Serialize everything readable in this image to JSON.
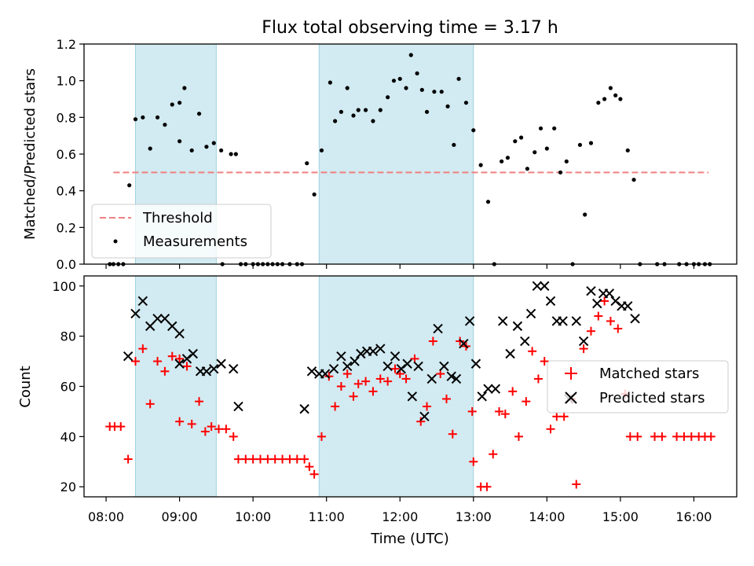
{
  "chart_data": [
    {
      "type": "scatter",
      "title": "Flux total observing time = 3.17 h",
      "xlabel": "",
      "ylabel": "Matched/Predicted stars",
      "xlim": [
        "07:42",
        "16:35"
      ],
      "ylim": [
        0,
        1.2
      ],
      "yticks": [
        "0.0",
        "0.2",
        "0.4",
        "0.6",
        "0.8",
        "1.0",
        "1.2"
      ],
      "legend_position": "lower-left",
      "shaded_intervals": [
        [
          "08:24",
          "09:30"
        ],
        [
          "10:54",
          "13:00"
        ]
      ],
      "shade_color": "#add8e6",
      "threshold": {
        "name": "Threshold",
        "value": 0.5,
        "x_range": [
          "08:06",
          "16:12"
        ],
        "color": "#f08080",
        "style": "dashed"
      },
      "series": [
        {
          "name": "Measurements",
          "color": "#000000",
          "marker": "dot",
          "points": [
            [
              "08:03",
              0
            ],
            [
              "08:06",
              0
            ],
            [
              "08:10",
              0
            ],
            [
              "08:14",
              0
            ],
            [
              "08:19",
              0.43
            ],
            [
              "08:24",
              0.79
            ],
            [
              "08:30",
              0.8
            ],
            [
              "08:36",
              0.63
            ],
            [
              "08:42",
              0.8
            ],
            [
              "08:48",
              0.76
            ],
            [
              "08:54",
              0.87
            ],
            [
              "09:00",
              0.88
            ],
            [
              "09:00",
              0.67
            ],
            [
              "09:04",
              0.96
            ],
            [
              "09:10",
              0.62
            ],
            [
              "09:16",
              0.82
            ],
            [
              "09:22",
              0.64
            ],
            [
              "09:28",
              0.66
            ],
            [
              "09:34",
              0.62
            ],
            [
              "09:35",
              0
            ],
            [
              "09:42",
              0.6
            ],
            [
              "09:46",
              0.6
            ],
            [
              "09:50",
              0
            ],
            [
              "09:54",
              0
            ],
            [
              "10:00",
              0
            ],
            [
              "10:04",
              0
            ],
            [
              "10:08",
              0
            ],
            [
              "10:12",
              0
            ],
            [
              "10:16",
              0
            ],
            [
              "10:20",
              0
            ],
            [
              "10:24",
              0
            ],
            [
              "10:30",
              0
            ],
            [
              "10:36",
              0
            ],
            [
              "10:40",
              0
            ],
            [
              "10:44",
              0.55
            ],
            [
              "10:50",
              0.38
            ],
            [
              "10:56",
              0.62
            ],
            [
              "11:03",
              0.99
            ],
            [
              "11:07",
              0.78
            ],
            [
              "11:12",
              0.83
            ],
            [
              "11:17",
              0.96
            ],
            [
              "11:22",
              0.81
            ],
            [
              "11:26",
              0.84
            ],
            [
              "11:32",
              0.84
            ],
            [
              "11:38",
              0.78
            ],
            [
              "11:44",
              0.84
            ],
            [
              "11:50",
              0.91
            ],
            [
              "11:55",
              1.0
            ],
            [
              "12:00",
              1.01
            ],
            [
              "12:05",
              0.96
            ],
            [
              "12:09",
              1.14
            ],
            [
              "12:14",
              1.04
            ],
            [
              "12:18",
              0.95
            ],
            [
              "12:22",
              0.83
            ],
            [
              "12:28",
              0.94
            ],
            [
              "12:34",
              0.94
            ],
            [
              "12:39",
              0.86
            ],
            [
              "12:44",
              0.65
            ],
            [
              "12:48",
              1.01
            ],
            [
              "12:54",
              0.88
            ],
            [
              "13:00",
              0.73
            ],
            [
              "13:06",
              0.54
            ],
            [
              "13:12",
              0.34
            ],
            [
              "13:17",
              0
            ],
            [
              "13:23",
              0.56
            ],
            [
              "13:28",
              0.58
            ],
            [
              "13:34",
              0.67
            ],
            [
              "13:39",
              0.69
            ],
            [
              "13:44",
              0.52
            ],
            [
              "13:50",
              0.61
            ],
            [
              "13:55",
              0.74
            ],
            [
              "14:00",
              0.63
            ],
            [
              "14:06",
              0.74
            ],
            [
              "14:11",
              0.5
            ],
            [
              "14:16",
              0.56
            ],
            [
              "14:21",
              0
            ],
            [
              "14:27",
              0.65
            ],
            [
              "14:31",
              0.27
            ],
            [
              "14:36",
              0.66
            ],
            [
              "14:42",
              0.88
            ],
            [
              "14:47",
              0.9
            ],
            [
              "14:52",
              0.96
            ],
            [
              "14:56",
              0.92
            ],
            [
              "15:00",
              0.9
            ],
            [
              "15:06",
              0.62
            ],
            [
              "15:11",
              0.46
            ],
            [
              "15:16",
              0
            ],
            [
              "15:30",
              0
            ],
            [
              "15:36",
              0
            ],
            [
              "15:48",
              0
            ],
            [
              "15:54",
              0
            ],
            [
              "16:00",
              0
            ],
            [
              "16:04",
              0
            ],
            [
              "16:09",
              0
            ],
            [
              "16:13",
              0
            ]
          ]
        }
      ]
    },
    {
      "type": "scatter",
      "title": "",
      "xlabel": "Time (UTC)",
      "ylabel": "Count",
      "xlim": [
        "07:42",
        "16:35"
      ],
      "ylim": [
        16,
        104
      ],
      "yticks": [
        "20",
        "40",
        "60",
        "80",
        "100"
      ],
      "xticks": [
        "08:00",
        "09:00",
        "10:00",
        "11:00",
        "12:00",
        "13:00",
        "14:00",
        "15:00",
        "16:00"
      ],
      "legend_position": "center-right",
      "shaded_intervals": [
        [
          "08:24",
          "09:30"
        ],
        [
          "10:54",
          "13:00"
        ]
      ],
      "shade_color": "#add8e6",
      "series": [
        {
          "name": "Matched stars",
          "color": "#ff0000",
          "marker": "plus",
          "points": [
            [
              "08:03",
              44
            ],
            [
              "08:07",
              44
            ],
            [
              "08:12",
              44
            ],
            [
              "08:18",
              31
            ],
            [
              "08:24",
              70
            ],
            [
              "08:30",
              75
            ],
            [
              "08:36",
              53
            ],
            [
              "08:42",
              70
            ],
            [
              "08:48",
              66
            ],
            [
              "08:54",
              72
            ],
            [
              "09:00",
              71
            ],
            [
              "09:00",
              46
            ],
            [
              "09:06",
              68
            ],
            [
              "09:10",
              45
            ],
            [
              "09:16",
              54
            ],
            [
              "09:21",
              42
            ],
            [
              "09:26",
              44
            ],
            [
              "09:32",
              43
            ],
            [
              "09:38",
              43
            ],
            [
              "09:44",
              40
            ],
            [
              "09:48",
              31
            ],
            [
              "09:54",
              31
            ],
            [
              "10:00",
              31
            ],
            [
              "10:06",
              31
            ],
            [
              "10:12",
              31
            ],
            [
              "10:18",
              31
            ],
            [
              "10:24",
              31
            ],
            [
              "10:30",
              31
            ],
            [
              "10:36",
              31
            ],
            [
              "10:42",
              31
            ],
            [
              "10:46",
              28
            ],
            [
              "10:50",
              25
            ],
            [
              "10:56",
              40
            ],
            [
              "11:02",
              64
            ],
            [
              "11:07",
              52
            ],
            [
              "11:12",
              60
            ],
            [
              "11:17",
              65
            ],
            [
              "11:22",
              56
            ],
            [
              "11:26",
              61
            ],
            [
              "11:32",
              62
            ],
            [
              "11:38",
              58
            ],
            [
              "11:44",
              63
            ],
            [
              "11:50",
              62
            ],
            [
              "11:56",
              67
            ],
            [
              "12:00",
              65
            ],
            [
              "12:05",
              63
            ],
            [
              "12:12",
              71
            ],
            [
              "12:17",
              46
            ],
            [
              "12:22",
              52
            ],
            [
              "12:27",
              78
            ],
            [
              "12:33",
              65
            ],
            [
              "12:38",
              55
            ],
            [
              "12:43",
              41
            ],
            [
              "12:49",
              78
            ],
            [
              "12:54",
              76
            ],
            [
              "12:59",
              50
            ],
            [
              "13:00",
              30
            ],
            [
              "13:06",
              20
            ],
            [
              "13:11",
              20
            ],
            [
              "13:16",
              33
            ],
            [
              "13:21",
              50
            ],
            [
              "13:26",
              49
            ],
            [
              "13:32",
              58
            ],
            [
              "13:37",
              40
            ],
            [
              "13:43",
              54
            ],
            [
              "13:48",
              74
            ],
            [
              "13:53",
              63
            ],
            [
              "13:58",
              70
            ],
            [
              "14:03",
              43
            ],
            [
              "14:08",
              48
            ],
            [
              "14:14",
              48
            ],
            [
              "14:20",
              55
            ],
            [
              "14:24",
              21
            ],
            [
              "14:30",
              75
            ],
            [
              "14:36",
              82
            ],
            [
              "14:42",
              88
            ],
            [
              "14:47",
              94
            ],
            [
              "14:52",
              86
            ],
            [
              "14:58",
              83
            ],
            [
              "15:04",
              57
            ],
            [
              "15:08",
              40
            ],
            [
              "15:14",
              40
            ],
            [
              "15:28",
              40
            ],
            [
              "15:34",
              40
            ],
            [
              "15:46",
              40
            ],
            [
              "15:52",
              40
            ],
            [
              "15:58",
              40
            ],
            [
              "16:04",
              40
            ],
            [
              "16:09",
              40
            ],
            [
              "16:14",
              40
            ]
          ]
        },
        {
          "name": "Predicted stars",
          "color": "#000000",
          "marker": "x",
          "points": [
            [
              "08:18",
              72
            ],
            [
              "08:24",
              89
            ],
            [
              "08:30",
              94
            ],
            [
              "08:36",
              84
            ],
            [
              "08:42",
              87
            ],
            [
              "08:48",
              87
            ],
            [
              "08:54",
              84
            ],
            [
              "09:00",
              81
            ],
            [
              "09:00",
              69
            ],
            [
              "09:06",
              71
            ],
            [
              "09:11",
              73
            ],
            [
              "09:17",
              66
            ],
            [
              "09:22",
              66
            ],
            [
              "09:28",
              67
            ],
            [
              "09:34",
              69
            ],
            [
              "09:44",
              67
            ],
            [
              "09:48",
              52
            ],
            [
              "10:42",
              51
            ],
            [
              "10:48",
              66
            ],
            [
              "10:54",
              65
            ],
            [
              "10:59",
              65
            ],
            [
              "11:06",
              67
            ],
            [
              "11:12",
              72
            ],
            [
              "11:17",
              68
            ],
            [
              "11:23",
              70
            ],
            [
              "11:28",
              73
            ],
            [
              "11:33",
              74
            ],
            [
              "11:38",
              74
            ],
            [
              "11:44",
              75
            ],
            [
              "11:50",
              68
            ],
            [
              "11:56",
              72
            ],
            [
              "12:01",
              67
            ],
            [
              "12:06",
              69
            ],
            [
              "12:10",
              56
            ],
            [
              "12:15",
              68
            ],
            [
              "12:20",
              48
            ],
            [
              "12:26",
              63
            ],
            [
              "12:31",
              83
            ],
            [
              "12:36",
              68
            ],
            [
              "12:42",
              64
            ],
            [
              "12:46",
              63
            ],
            [
              "12:52",
              77
            ],
            [
              "12:57",
              86
            ],
            [
              "13:02",
              69
            ],
            [
              "13:07",
              56
            ],
            [
              "13:12",
              59
            ],
            [
              "13:18",
              59
            ],
            [
              "13:24",
              86
            ],
            [
              "13:30",
              73
            ],
            [
              "13:36",
              84
            ],
            [
              "13:42",
              78
            ],
            [
              "13:47",
              89
            ],
            [
              "13:52",
              100
            ],
            [
              "13:58",
              100
            ],
            [
              "14:03",
              94
            ],
            [
              "14:08",
              86
            ],
            [
              "14:13",
              86
            ],
            [
              "14:18",
              55
            ],
            [
              "14:24",
              86
            ],
            [
              "14:30",
              78
            ],
            [
              "14:36",
              98
            ],
            [
              "14:41",
              93
            ],
            [
              "14:46",
              97
            ],
            [
              "14:51",
              97
            ],
            [
              "14:56",
              94
            ],
            [
              "15:01",
              92
            ],
            [
              "15:06",
              92
            ],
            [
              "15:12",
              87
            ]
          ]
        }
      ]
    }
  ]
}
